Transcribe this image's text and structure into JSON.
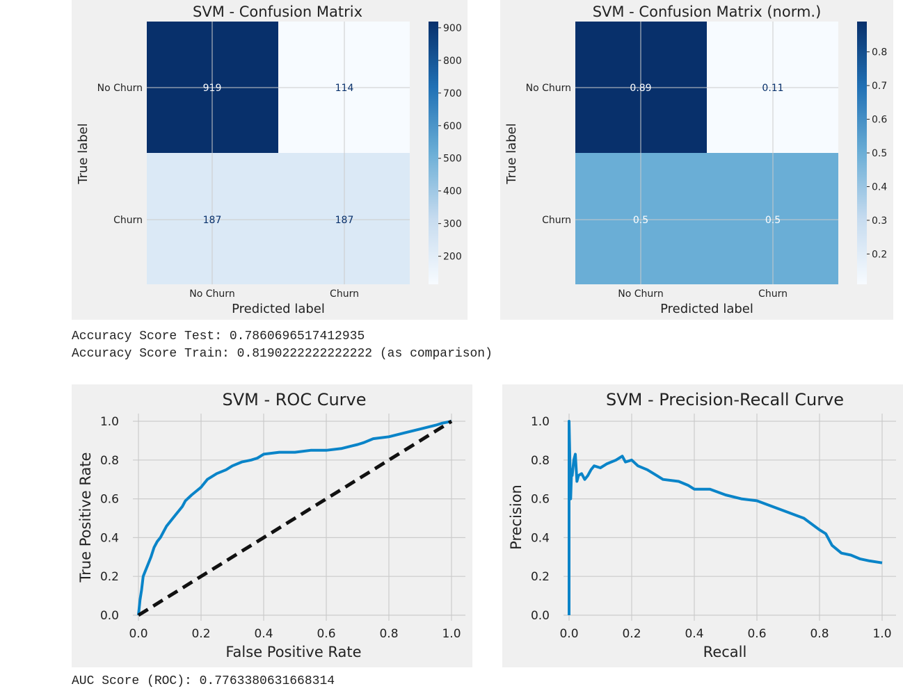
{
  "confusion": {
    "title": "SVM - Confusion Matrix",
    "xlabel": "Predicted label",
    "ylabel": "True label",
    "row_labels": [
      "No Churn",
      "Churn"
    ],
    "col_labels": [
      "No Churn",
      "Churn"
    ],
    "cells": [
      [
        "919",
        "114"
      ],
      [
        "187",
        "187"
      ]
    ],
    "colorbar_ticks": [
      "900",
      "800",
      "700",
      "600",
      "500",
      "400",
      "300",
      "200"
    ]
  },
  "confusion_norm": {
    "title": "SVM - Confusion Matrix (norm.)",
    "xlabel": "Predicted label",
    "ylabel": "True label",
    "row_labels": [
      "No Churn",
      "Churn"
    ],
    "col_labels": [
      "No Churn",
      "Churn"
    ],
    "cells": [
      [
        "0.89",
        "0.11"
      ],
      [
        "0.5",
        "0.5"
      ]
    ],
    "colorbar_ticks": [
      "0.8",
      "0.7",
      "0.6",
      "0.5",
      "0.4",
      "0.3",
      "0.2"
    ]
  },
  "output": {
    "accuracy_test": "Accuracy Score Test: 0.7860696517412935",
    "accuracy_train": "Accuracy Score Train: 0.8190222222222222 (as comparison)",
    "auc": "AUC Score (ROC): 0.7763380631668314"
  },
  "colors": {
    "curve": "#0a84c8",
    "dark_cell": "#08306b",
    "light_cell": "#f7fbff",
    "mid_cell": "#dbe9f6",
    "norm_mid_cell": "#6aaed6"
  },
  "chart_data": [
    {
      "type": "heatmap",
      "title": "SVM - Confusion Matrix",
      "xlabel": "Predicted label",
      "ylabel": "True label",
      "categories_x": [
        "No Churn",
        "Churn"
      ],
      "categories_y": [
        "No Churn",
        "Churn"
      ],
      "values": [
        [
          919,
          114
        ],
        [
          187,
          187
        ]
      ],
      "colorbar_range": [
        114,
        919
      ]
    },
    {
      "type": "heatmap",
      "title": "SVM - Confusion Matrix (norm.)",
      "xlabel": "Predicted label",
      "ylabel": "True label",
      "categories_x": [
        "No Churn",
        "Churn"
      ],
      "categories_y": [
        "No Churn",
        "Churn"
      ],
      "values": [
        [
          0.89,
          0.11
        ],
        [
          0.5,
          0.5
        ]
      ],
      "colorbar_range": [
        0.11,
        0.89
      ]
    },
    {
      "type": "line",
      "title": "SVM - ROC Curve",
      "xlabel": "False Positive Rate",
      "ylabel": "True Positive Rate",
      "xlim": [
        0,
        1
      ],
      "ylim": [
        0,
        1
      ],
      "xticks": [
        "0.0",
        "0.2",
        "0.4",
        "0.6",
        "0.8",
        "1.0"
      ],
      "yticks": [
        "0.0",
        "0.2",
        "0.4",
        "0.6",
        "0.8",
        "1.0"
      ],
      "series": [
        {
          "name": "ROC",
          "x": [
            0,
            0.005,
            0.01,
            0.015,
            0.02,
            0.03,
            0.04,
            0.05,
            0.06,
            0.07,
            0.08,
            0.09,
            0.1,
            0.12,
            0.14,
            0.15,
            0.17,
            0.2,
            0.22,
            0.25,
            0.28,
            0.3,
            0.33,
            0.36,
            0.38,
            0.4,
            0.45,
            0.5,
            0.55,
            0.6,
            0.65,
            0.7,
            0.72,
            0.75,
            0.8,
            0.85,
            0.9,
            0.95,
            0.97,
            1.0
          ],
          "y": [
            0,
            0.08,
            0.13,
            0.2,
            0.22,
            0.26,
            0.3,
            0.35,
            0.38,
            0.4,
            0.43,
            0.46,
            0.48,
            0.52,
            0.56,
            0.59,
            0.62,
            0.66,
            0.7,
            0.73,
            0.75,
            0.77,
            0.79,
            0.8,
            0.81,
            0.83,
            0.84,
            0.84,
            0.85,
            0.85,
            0.86,
            0.88,
            0.89,
            0.91,
            0.92,
            0.94,
            0.96,
            0.98,
            0.99,
            1.0
          ]
        },
        {
          "name": "Chance",
          "x": [
            0,
            1
          ],
          "y": [
            0,
            1
          ],
          "style": "dashed"
        }
      ]
    },
    {
      "type": "line",
      "title": "SVM - Precision-Recall Curve",
      "xlabel": "Recall",
      "ylabel": "Precision",
      "xlim": [
        0,
        1
      ],
      "ylim": [
        0,
        1
      ],
      "xticks": [
        "0.0",
        "0.2",
        "0.4",
        "0.6",
        "0.8",
        "1.0"
      ],
      "yticks": [
        "0.0",
        "0.2",
        "0.4",
        "0.6",
        "0.8",
        "1.0"
      ],
      "series": [
        {
          "name": "Precision-Recall",
          "x": [
            0.0,
            0.0,
            0.0,
            0.005,
            0.008,
            0.01,
            0.015,
            0.02,
            0.025,
            0.03,
            0.04,
            0.05,
            0.06,
            0.07,
            0.08,
            0.1,
            0.12,
            0.15,
            0.17,
            0.18,
            0.2,
            0.22,
            0.25,
            0.28,
            0.3,
            0.35,
            0.38,
            0.4,
            0.45,
            0.5,
            0.55,
            0.6,
            0.65,
            0.7,
            0.75,
            0.8,
            0.82,
            0.84,
            0.87,
            0.9,
            0.93,
            0.96,
            1.0
          ],
          "y": [
            0.0,
            0.6,
            1.0,
            0.6,
            0.75,
            0.72,
            0.8,
            0.83,
            0.69,
            0.72,
            0.73,
            0.7,
            0.72,
            0.75,
            0.77,
            0.76,
            0.78,
            0.8,
            0.82,
            0.79,
            0.8,
            0.77,
            0.75,
            0.72,
            0.7,
            0.69,
            0.67,
            0.65,
            0.65,
            0.62,
            0.6,
            0.59,
            0.56,
            0.53,
            0.5,
            0.44,
            0.42,
            0.36,
            0.32,
            0.31,
            0.29,
            0.28,
            0.27
          ]
        }
      ]
    }
  ]
}
